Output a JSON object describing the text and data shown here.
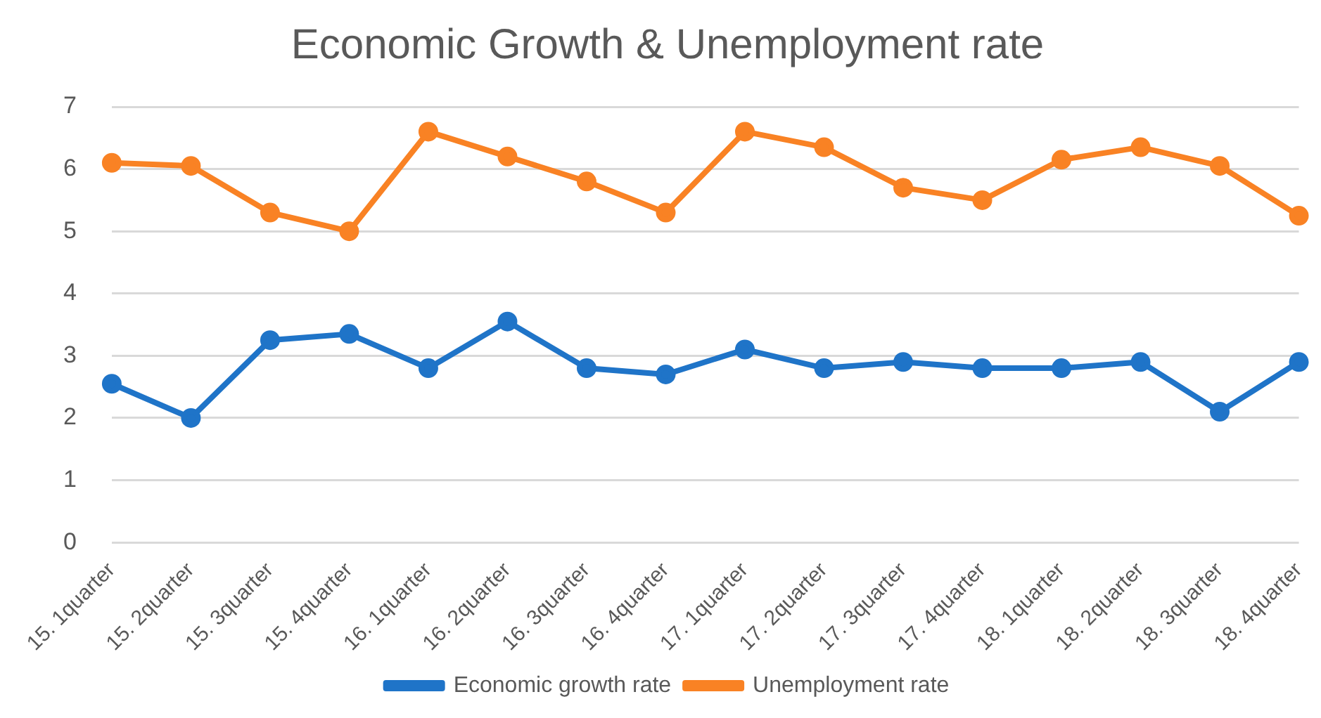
{
  "chart_data": {
    "type": "line",
    "title": "Economic Growth & Unemployment rate",
    "categories": [
      "15. 1quarter",
      "15. 2quarter",
      "15. 3quarter",
      "15. 4quarter",
      "16. 1quarter",
      "16. 2quarter",
      "16. 3quarter",
      "16. 4quarter",
      "17. 1quarter",
      "17. 2quarter",
      "17. 3quarter",
      "17. 4quarter",
      "18. 1quarter",
      "18. 2quarter",
      "18. 3quarter",
      "18. 4quarter"
    ],
    "series": [
      {
        "name": "Economic growth rate",
        "color": "#1f74c8",
        "values": [
          2.55,
          2.0,
          3.25,
          3.35,
          2.8,
          3.55,
          2.8,
          2.7,
          3.1,
          2.8,
          2.9,
          2.8,
          2.8,
          2.9,
          2.1,
          2.9
        ]
      },
      {
        "name": "Unemployment rate",
        "color": "#f98224",
        "values": [
          6.1,
          6.05,
          5.3,
          5.0,
          6.6,
          6.2,
          5.8,
          5.3,
          6.6,
          6.35,
          5.7,
          5.5,
          6.15,
          6.35,
          6.05,
          5.25
        ]
      }
    ],
    "ylim": [
      0,
      7
    ],
    "yticks": [
      0,
      1,
      2,
      3,
      4,
      5,
      6,
      7
    ],
    "grid": "y",
    "legend": "bottom",
    "marker": "circle",
    "line_style": "solid"
  }
}
